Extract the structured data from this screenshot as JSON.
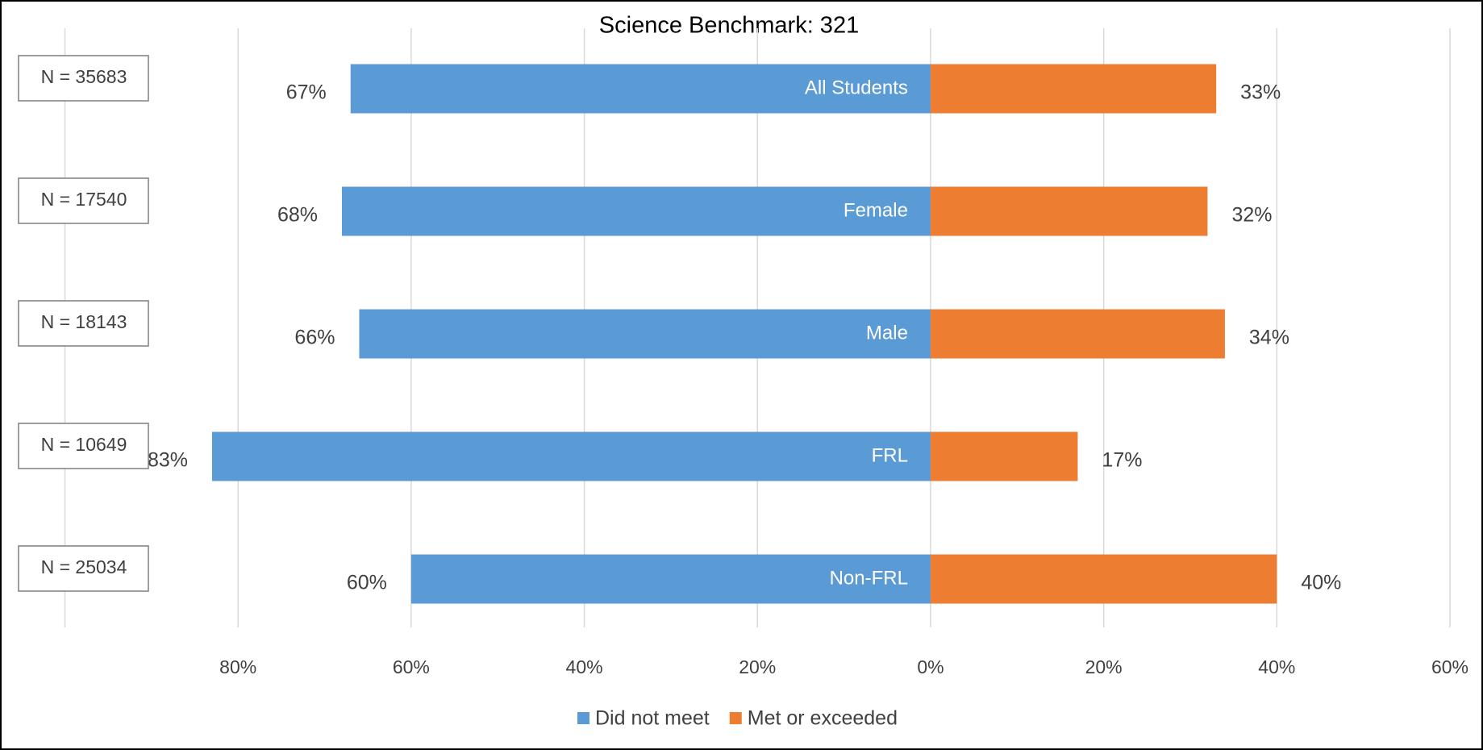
{
  "chart_data": {
    "type": "diverging_bar",
    "title": "Science Benchmark: 321",
    "categories": [
      "All Students",
      "Female",
      "Male",
      "FRL",
      "Non-FRL"
    ],
    "annotations": [
      "N = 35683",
      "N = 17540",
      "N = 18143",
      "N = 10649",
      "N = 25034"
    ],
    "series": [
      {
        "name": "Did not meet",
        "color": "#5b9bd5",
        "values": [
          67,
          68,
          66,
          83,
          60
        ],
        "value_labels": [
          "67%",
          "68%",
          "66%",
          "83%",
          "60%"
        ]
      },
      {
        "name": "Met or exceeded",
        "color": "#ed7d31",
        "values": [
          33,
          32,
          34,
          17,
          40
        ],
        "value_labels": [
          "33%",
          "32%",
          "34%",
          "17%",
          "40%"
        ]
      }
    ],
    "xlim": [
      -100,
      60
    ],
    "xticks": [
      {
        "value": -100,
        "label": null
      },
      {
        "value": -80,
        "label": "80%"
      },
      {
        "value": -60,
        "label": "60%"
      },
      {
        "value": -40,
        "label": "40%"
      },
      {
        "value": -20,
        "label": "20%"
      },
      {
        "value": 0,
        "label": "0%"
      },
      {
        "value": 20,
        "label": "20%"
      },
      {
        "value": 40,
        "label": "40%"
      },
      {
        "value": 60,
        "label": "60%"
      }
    ],
    "grid": true,
    "legend": "bottom"
  }
}
